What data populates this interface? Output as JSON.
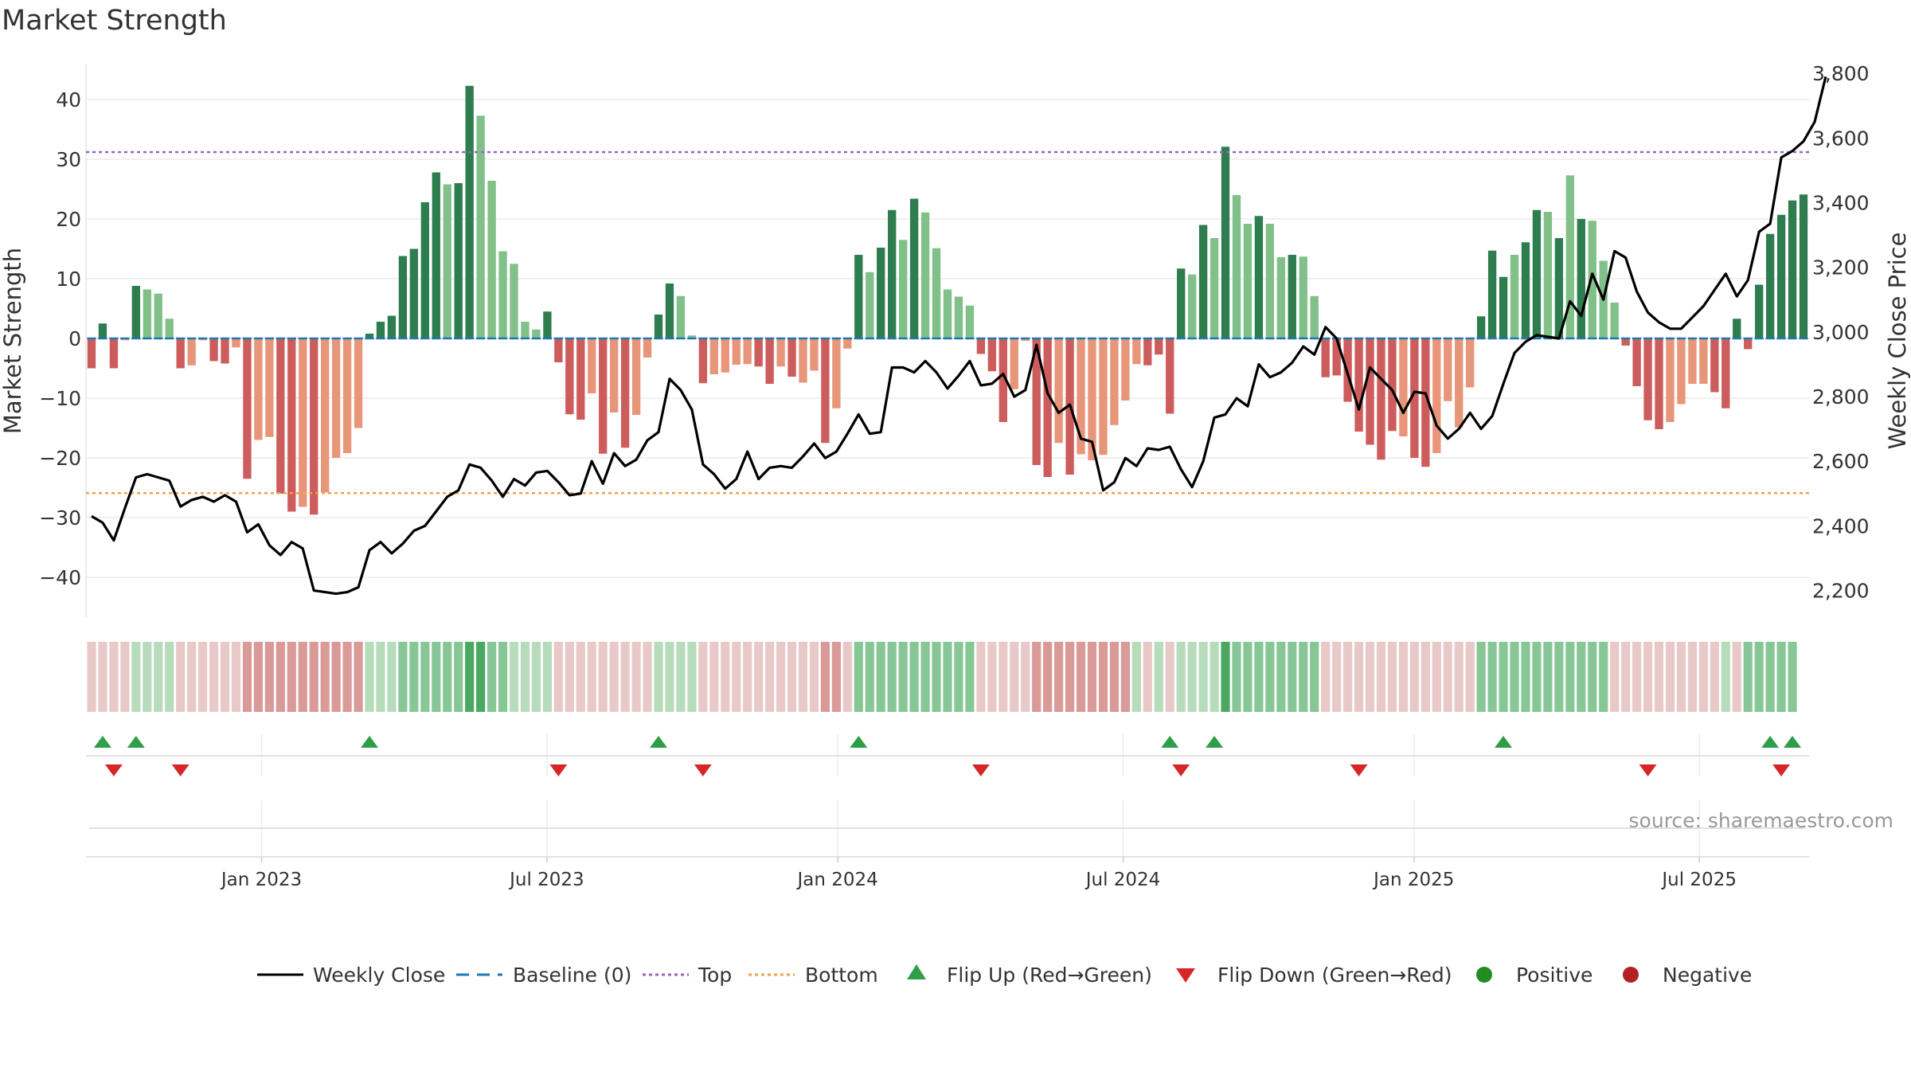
{
  "title": "Market Strength",
  "source": "source: sharemaestro.com",
  "colors": {
    "strong_green": "#2e7d4f",
    "light_green": "#82c08a",
    "strong_red": "#cd5c5c",
    "light_red": "#e8967a",
    "baseline": "#1f77b4",
    "top_line": "#9467bd",
    "bottom_line": "#f0a050",
    "flip_up": "#2e9e48",
    "flip_down": "#d62728",
    "positive": "#228b22",
    "negative": "#b22222",
    "price": "#000000"
  },
  "chart_data": {
    "type": "bar+line",
    "title": "Market Strength",
    "ylabel_left": "Market Strength",
    "ylabel_right": "Weekly Close Price",
    "ylim_left": [
      -46,
      46
    ],
    "yticks_left": [
      40,
      30,
      20,
      10,
      0,
      -10,
      -20,
      -30,
      -40
    ],
    "ytick_labels_left": [
      "40",
      "30",
      "20",
      "10",
      "0",
      "−10",
      "−20",
      "−30",
      "−40"
    ],
    "ylim_right": [
      2130,
      3830
    ],
    "yticks_right": [
      3800,
      3600,
      3400,
      3200,
      3000,
      2800,
      2600,
      2400,
      2200
    ],
    "ytick_labels_right": [
      "3,800",
      "3,600",
      "3,400",
      "3,200",
      "3,000",
      "2,800",
      "2,600",
      "2,400",
      "2,200"
    ],
    "top_threshold": 31.2,
    "bottom_threshold": -25.9,
    "x_range": [
      0,
      157
    ],
    "x_tick_positions": [
      16,
      42,
      68.5,
      94.5,
      121,
      147
    ],
    "x_tick_labels": [
      "Jan 2023",
      "Jul 2023",
      "Jan 2024",
      "Jul 2024",
      "Jan 2025",
      "Jul 2025"
    ],
    "strength": [
      -5,
      2.5,
      -5,
      -0.3,
      8.8,
      8.2,
      7.5,
      3.3,
      -5,
      -4.5,
      -0.3,
      -3.8,
      -4.2,
      -1.5,
      -23.5,
      -17,
      -16.5,
      -26,
      -29,
      -28.2,
      -29.5,
      -25.8,
      -20,
      -19.2,
      -15,
      0.8,
      2.8,
      3.8,
      13.8,
      15,
      22.8,
      27.8,
      25.8,
      26,
      42.3,
      37.3,
      26.4,
      14.6,
      12.5,
      2.8,
      1.5,
      4.5,
      -4,
      -12.7,
      -13.6,
      -9.2,
      -19.3,
      -12.4,
      -18.3,
      -12.8,
      -3.2,
      4,
      9.2,
      7.1,
      0.5,
      -7.5,
      -6,
      -5.7,
      -4.4,
      -4.3,
      -4.7,
      -7.6,
      -4.7,
      -6.4,
      -7.4,
      -5.4,
      -17.5,
      -11.7,
      -1.7,
      14,
      11.1,
      15.2,
      21.5,
      16.5,
      23.4,
      21.1,
      15.1,
      8.2,
      7,
      5.5,
      -2.6,
      -5.5,
      -14,
      -8.5,
      -0.4,
      -21.2,
      -23.2,
      -17.5,
      -22.8,
      -19.4,
      -20.4,
      -19.5,
      -14.5,
      -10.4,
      -4.3,
      -4.5,
      -2.7,
      -12.6,
      11.7,
      10.7,
      19,
      16.8,
      32.1,
      24,
      19.2,
      20.5,
      19.2,
      13.6,
      14,
      13.7,
      7.1,
      -6.5,
      -6.2,
      -10.6,
      -15.6,
      -17.8,
      -20.3,
      -15.5,
      -16.4,
      -20,
      -21.5,
      -19.2,
      -10.5,
      -14.9,
      -8.2,
      3.7,
      14.7,
      10.3,
      14,
      16.1,
      21.5,
      21.2,
      16.8,
      27.3,
      20,
      19.7,
      13,
      6,
      -1.2,
      -8,
      -13.7,
      -15.2,
      -14,
      -11,
      -7.6,
      -7.6,
      -9,
      -11.7,
      3.3,
      -1.8,
      9,
      17.5,
      20.7,
      23.1,
      24.1
    ],
    "strength_shade": [
      "S",
      "S",
      "S",
      "L",
      "S",
      "L",
      "L",
      "L",
      "S",
      "L",
      "L",
      "S",
      "S",
      "L",
      "S",
      "L",
      "L",
      "S",
      "S",
      "L",
      "S",
      "L",
      "L",
      "L",
      "L",
      "S",
      "S",
      "S",
      "S",
      "S",
      "S",
      "S",
      "L",
      "S",
      "S",
      "L",
      "L",
      "L",
      "L",
      "L",
      "L",
      "S",
      "S",
      "S",
      "S",
      "L",
      "S",
      "L",
      "S",
      "L",
      "L",
      "S",
      "S",
      "L",
      "L",
      "S",
      "L",
      "L",
      "L",
      "L",
      "S",
      "S",
      "L",
      "S",
      "L",
      "L",
      "S",
      "L",
      "L",
      "S",
      "L",
      "S",
      "S",
      "L",
      "S",
      "L",
      "L",
      "L",
      "L",
      "L",
      "S",
      "S",
      "S",
      "L",
      "L",
      "S",
      "S",
      "L",
      "S",
      "L",
      "L",
      "L",
      "L",
      "L",
      "L",
      "S",
      "S",
      "S",
      "S",
      "L",
      "S",
      "L",
      "S",
      "L",
      "L",
      "S",
      "L",
      "L",
      "S",
      "L",
      "L",
      "S",
      "S",
      "S",
      "S",
      "S",
      "S",
      "S",
      "L",
      "S",
      "S",
      "L",
      "L",
      "L",
      "L",
      "S",
      "S",
      "S",
      "L",
      "S",
      "S",
      "L",
      "S",
      "L",
      "S",
      "L",
      "L",
      "L",
      "S",
      "S",
      "S",
      "S",
      "L",
      "L",
      "L",
      "L",
      "S",
      "S",
      "S",
      "S",
      "S",
      "S",
      "S",
      "S",
      "S"
    ],
    "weekly_close": [
      2430,
      2410,
      2355,
      2455,
      2550,
      2560,
      2550,
      2540,
      2460,
      2480,
      2490,
      2475,
      2495,
      2475,
      2380,
      2405,
      2340,
      2310,
      2350,
      2330,
      2200,
      2195,
      2190,
      2195,
      2210,
      2325,
      2350,
      2315,
      2345,
      2385,
      2400,
      2445,
      2490,
      2510,
      2590,
      2580,
      2540,
      2490,
      2545,
      2525,
      2565,
      2570,
      2535,
      2495,
      2500,
      2600,
      2530,
      2625,
      2585,
      2605,
      2665,
      2690,
      2855,
      2820,
      2760,
      2590,
      2560,
      2515,
      2545,
      2630,
      2545,
      2580,
      2585,
      2580,
      2615,
      2655,
      2610,
      2630,
      2685,
      2745,
      2685,
      2690,
      2890,
      2890,
      2875,
      2910,
      2875,
      2825,
      2865,
      2910,
      2835,
      2840,
      2870,
      2800,
      2820,
      2960,
      2810,
      2750,
      2775,
      2670,
      2660,
      2510,
      2535,
      2610,
      2585,
      2640,
      2635,
      2645,
      2575,
      2520,
      2600,
      2735,
      2745,
      2795,
      2770,
      2900,
      2860,
      2875,
      2905,
      2955,
      2930,
      3015,
      2980,
      2870,
      2760,
      2890,
      2855,
      2820,
      2750,
      2815,
      2810,
      2710,
      2670,
      2700,
      2750,
      2700,
      2740,
      2840,
      2935,
      2970,
      2990,
      2985,
      2980,
      3095,
      3050,
      3180,
      3100,
      3250,
      3230,
      3125,
      3060,
      3030,
      3010,
      3010,
      3045,
      3080,
      3130,
      3180,
      3110,
      3160,
      3310,
      3335,
      3540,
      3560,
      3590,
      3650,
      3790
    ],
    "bottom_bar_states": [
      "r",
      "r",
      "r",
      "r",
      "g",
      "g",
      "g",
      "g",
      "r",
      "r",
      "r",
      "r",
      "r",
      "r",
      "R",
      "R",
      "R",
      "R",
      "R",
      "R",
      "R",
      "R",
      "R",
      "R",
      "R",
      "g",
      "g",
      "g",
      "G",
      "G",
      "G",
      "G",
      "G",
      "G",
      "D",
      "D",
      "G",
      "G",
      "g",
      "g",
      "g",
      "g",
      "r",
      "r",
      "r",
      "r",
      "r",
      "r",
      "r",
      "r",
      "r",
      "g",
      "g",
      "g",
      "g",
      "r",
      "r",
      "r",
      "r",
      "r",
      "r",
      "r",
      "r",
      "r",
      "r",
      "r",
      "R",
      "R",
      "r",
      "G",
      "G",
      "G",
      "G",
      "G",
      "G",
      "G",
      "G",
      "G",
      "G",
      "G",
      "r",
      "r",
      "r",
      "r",
      "r",
      "R",
      "R",
      "R",
      "R",
      "R",
      "R",
      "R",
      "R",
      "R",
      "g",
      "r",
      "g",
      "r",
      "g",
      "g",
      "g",
      "g",
      "D",
      "G",
      "G",
      "G",
      "G",
      "G",
      "G",
      "G",
      "G",
      "r",
      "r",
      "r",
      "r",
      "r",
      "r",
      "r",
      "r",
      "r",
      "r",
      "r",
      "r",
      "r",
      "r",
      "G",
      "G",
      "G",
      "G",
      "G",
      "G",
      "G",
      "G",
      "G",
      "G",
      "G",
      "G",
      "r",
      "r",
      "r",
      "r",
      "r",
      "r",
      "r",
      "r",
      "r",
      "r",
      "g",
      "r",
      "G",
      "G",
      "G",
      "G",
      "G"
    ],
    "flip_up_x": [
      1,
      4,
      25,
      51,
      69,
      97,
      101,
      127,
      151,
      153
    ],
    "flip_down_x": [
      2,
      8,
      42,
      55,
      80,
      98,
      114,
      140,
      152
    ],
    "legend": [
      {
        "key": "close",
        "label": "Weekly Close"
      },
      {
        "key": "baseline",
        "label": "Baseline (0)"
      },
      {
        "key": "top",
        "label": "Top"
      },
      {
        "key": "bottom",
        "label": "Bottom"
      },
      {
        "key": "flipup",
        "label": "Flip Up (Red→Green)"
      },
      {
        "key": "flipdown",
        "label": "Flip Down (Green→Red)"
      },
      {
        "key": "positive",
        "label": "Positive"
      },
      {
        "key": "negative",
        "label": "Negative"
      }
    ]
  }
}
